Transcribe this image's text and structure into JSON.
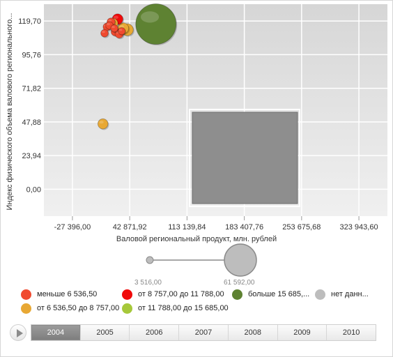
{
  "chart_data": {
    "type": "scatter",
    "subtype": "bubble",
    "xlabel": "Валовой региональный продукт, млн. рублей",
    "ylabel": "Индекс физического объема валового регионального...",
    "xlim": [
      -62382.44,
      358930.04
    ],
    "ylim": [
      -19.15,
      131.67
    ],
    "x_ticks": [
      {
        "value": -27396.0,
        "label": "-27 396,00"
      },
      {
        "value": 42871.92,
        "label": "42 871,92"
      },
      {
        "value": 113139.84,
        "label": "113 139,84"
      },
      {
        "value": 183407.76,
        "label": "183 407,76"
      },
      {
        "value": 253675.68,
        "label": "253 675,68"
      },
      {
        "value": 323943.6,
        "label": "323 943,60"
      }
    ],
    "y_ticks": [
      {
        "value": 0.0,
        "label": "0,00"
      },
      {
        "value": 23.94,
        "label": "23,94"
      },
      {
        "value": 47.88,
        "label": "47,88"
      },
      {
        "value": 71.82,
        "label": "71,82"
      },
      {
        "value": 95.76,
        "label": "95,76"
      },
      {
        "value": 119.7,
        "label": "119,70"
      }
    ],
    "grid": true,
    "year": "2004",
    "series": [
      {
        "key": "lt6536",
        "name": "меньше 6 536,50",
        "color": "#f04a2f"
      },
      {
        "key": "6536-8757",
        "name": "от 6 536,50 до 8 757,00",
        "color": "#e8a834"
      },
      {
        "key": "8757-11788",
        "name": "от 8 757,00 до 11 788,00",
        "color": "#f00a0a"
      },
      {
        "key": "11788-15685",
        "name": "от 11 788,00 до 15 685,00",
        "color": "#a6c83a"
      },
      {
        "key": "gt15685",
        "name": "больше 15 685,...",
        "color": "#5e8232"
      },
      {
        "key": "nodata",
        "name": "нет данн...",
        "color": "#bdbdbd"
      }
    ],
    "points": [
      {
        "series": "6536-8757",
        "x": 10000,
        "y": 46.5,
        "size": 9000
      },
      {
        "series": "6536-8757",
        "x": 40000,
        "y": 113.5,
        "size": 12000
      },
      {
        "series": "6536-8757",
        "x": 35000,
        "y": 114.5,
        "size": 10000
      },
      {
        "series": "8757-11788",
        "x": 28000,
        "y": 121,
        "size": 10000
      },
      {
        "series": "6536-8757",
        "x": 22000,
        "y": 118,
        "size": 9500
      },
      {
        "series": "gt15685",
        "x": 75000,
        "y": 117.5,
        "size": 61592
      },
      {
        "series": "lt6536",
        "x": 15000,
        "y": 115.5,
        "size": 5000
      },
      {
        "series": "lt6536",
        "x": 20000,
        "y": 119,
        "size": 5500
      },
      {
        "series": "lt6536",
        "x": 25000,
        "y": 112,
        "size": 5500
      },
      {
        "series": "lt6536",
        "x": 30000,
        "y": 110.5,
        "size": 6000
      },
      {
        "series": "lt6536",
        "x": 12000,
        "y": 111,
        "size": 4500
      },
      {
        "series": "lt6536",
        "x": 18000,
        "y": 116.5,
        "size": 4800
      },
      {
        "series": "lt6536",
        "x": 24000,
        "y": 114.5,
        "size": 4200
      },
      {
        "series": "lt6536",
        "x": 33000,
        "y": 112.5,
        "size": 4000
      }
    ],
    "size_scale": {
      "min_label": "3 516,00",
      "max_label": "61 592,00",
      "min": 3516,
      "max": 61592
    }
  },
  "timeline": {
    "years": [
      "2004",
      "2005",
      "2006",
      "2007",
      "2008",
      "2009",
      "2010"
    ],
    "active": "2004"
  }
}
